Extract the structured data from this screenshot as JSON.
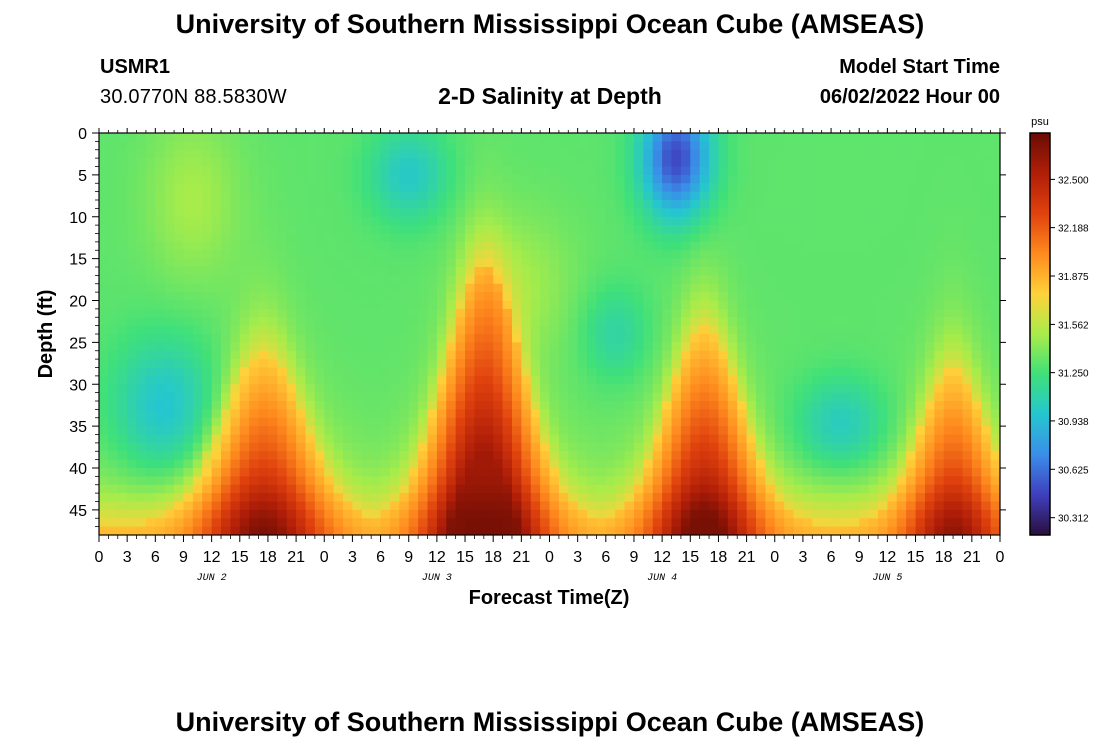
{
  "header": {
    "title": "University of Southern Mississippi Ocean Cube (AMSEAS)",
    "station": "USMR1",
    "coords": "30.0770N  88.5830W",
    "subtitle": "2-D Salinity at Depth",
    "model_start_label": "Model Start Time",
    "model_start_value": "06/02/2022 Hour 00"
  },
  "footer": {
    "title": "University of Southern Mississippi Ocean Cube (AMSEAS)"
  },
  "colors": {
    "colormap": [
      "#2a0e3c",
      "#3f3fbf",
      "#3a8ee8",
      "#25c6d0",
      "#3fe07a",
      "#a8ec4a",
      "#ffd23a",
      "#ff8a1e",
      "#e0420e",
      "#b01e08",
      "#6a0c04"
    ]
  },
  "chart_data": {
    "type": "heatmap",
    "xlabel": "Forecast Time(Z)",
    "ylabel": "Depth (ft)",
    "x_range_hours": [
      0,
      96
    ],
    "x_tick_labels": [
      "0",
      "3",
      "6",
      "9",
      "12",
      "15",
      "18",
      "21",
      "0",
      "3",
      "6",
      "9",
      "12",
      "15",
      "18",
      "21",
      "0",
      "3",
      "6",
      "9",
      "12",
      "15",
      "18",
      "21",
      "0",
      "3",
      "6",
      "9",
      "12",
      "15",
      "18",
      "21",
      "0"
    ],
    "x_tick_hours": [
      0,
      3,
      6,
      9,
      12,
      15,
      18,
      21,
      24,
      27,
      30,
      33,
      36,
      39,
      42,
      45,
      48,
      51,
      54,
      57,
      60,
      63,
      66,
      69,
      72,
      75,
      78,
      81,
      84,
      87,
      90,
      93,
      96
    ],
    "day_labels": [
      {
        "text": "JUN 2",
        "hour": 12
      },
      {
        "text": "JUN 3",
        "hour": 36
      },
      {
        "text": "JUN 4",
        "hour": 60
      },
      {
        "text": "JUN 5",
        "hour": 84
      }
    ],
    "y_tick_labels": [
      "0",
      "5",
      "10",
      "15",
      "20",
      "25",
      "30",
      "35",
      "40",
      "45"
    ],
    "y_ticks_ft": [
      0,
      5,
      10,
      15,
      20,
      25,
      30,
      35,
      40,
      45
    ],
    "ylim_ft": [
      0,
      48
    ],
    "colorbar": {
      "unit": "psu",
      "range": [
        30.2,
        32.8
      ],
      "ticks": [
        32.5,
        32.188,
        31.875,
        31.562,
        31.25,
        30.938,
        30.625,
        30.312
      ],
      "tick_labels": [
        "32.500",
        "32.188",
        "31.875",
        "31.562",
        "31.250",
        "30.938",
        "30.625",
        "30.312"
      ]
    },
    "grid": false
  }
}
